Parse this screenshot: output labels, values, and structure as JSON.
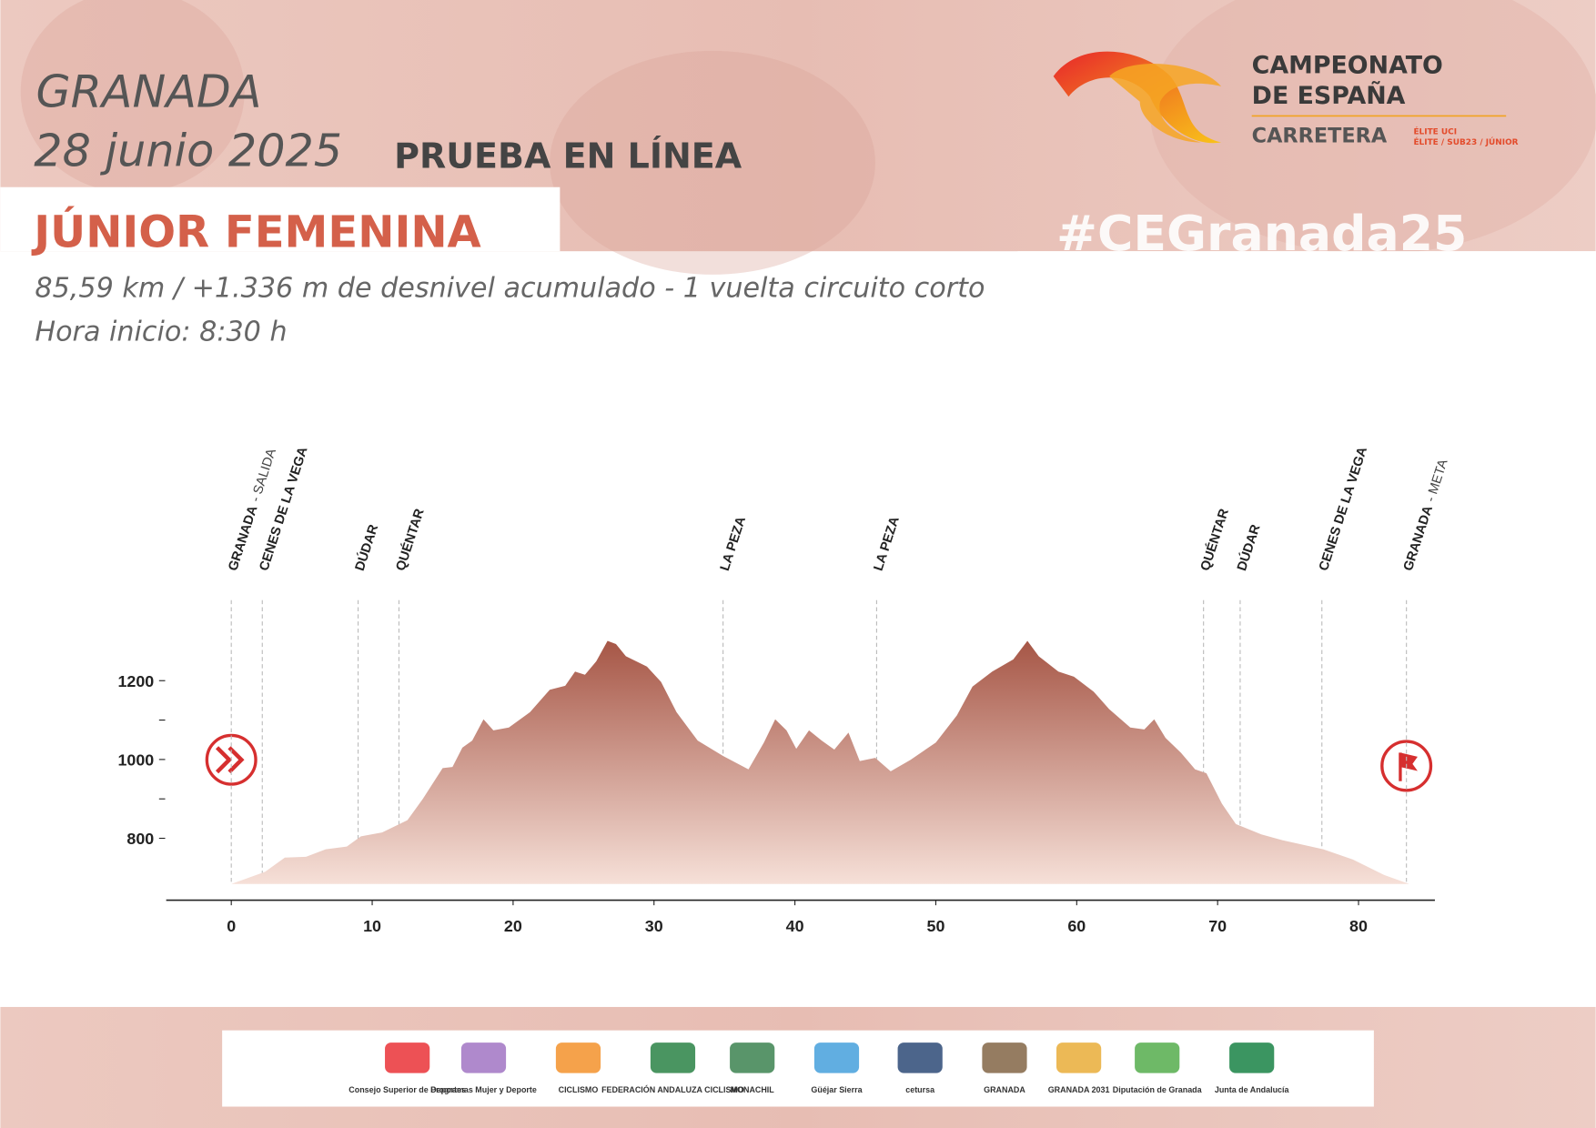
{
  "header": {
    "city": "GRANADA",
    "date": "28 junio 2025",
    "event": "PRUEBA EN LÍNEA",
    "category": "JÚNIOR FEMENINA",
    "details": "85,59 km / +1.336 m de desnivel acumulado  - 1 vuelta circuito corto",
    "start_time": "Hora inicio: 8:30 h",
    "hashtag": "#CEGranada25"
  },
  "logo": {
    "line1": "CAMPEONATO",
    "line2": "DE ESPAÑA",
    "line3": "CARRETERA",
    "tag1": "ÉLITE UCI",
    "tag2": "ÉLITE / SUB23 / JÚNIOR"
  },
  "sponsors": [
    "Consejo Superior de Deportes",
    "Programas Mujer y Deporte",
    "CICLISMO",
    "FEDERACIÓN ANDALUZA CICLISMO",
    "MONACHIL",
    "Güéjar Sierra",
    "cetursa",
    "GRANADA",
    "GRANADA 2031",
    "Diputación de Granada",
    "Junta de Andalucía"
  ],
  "chart_data": {
    "type": "area",
    "color_top": "#a65646",
    "color_bottom": "#f6e0d8",
    "x": [
      0,
      2.4,
      3.8,
      5.3,
      6.7,
      8.2,
      9.2,
      10.7,
      12.5,
      13.6,
      15.0,
      15.7,
      16.4,
      17.1,
      17.9,
      18.6,
      19.7,
      21.2,
      22.6,
      23.7,
      24.4,
      25.1,
      25.9,
      26.7,
      27.3,
      28.0,
      29.5,
      30.5,
      31.6,
      33.1,
      34.9,
      36.7,
      37.8,
      38.6,
      39.4,
      40.1,
      41.0,
      41.9,
      42.8,
      43.8,
      44.6,
      45.7,
      46.8,
      48.2,
      50.0,
      51.5,
      52.6,
      54.0,
      55.5,
      56.5,
      57.3,
      58.7,
      59.8,
      61.2,
      62.3,
      63.8,
      64.8,
      65.5,
      66.3,
      67.4,
      68.4,
      69.2,
      70.3,
      71.3,
      73.1,
      74.6,
      77.5,
      79.6,
      81.8,
      83.6
    ],
    "values": [
      684,
      715,
      751,
      753,
      772,
      779,
      805,
      815,
      846,
      900,
      978,
      981,
      1030,
      1048,
      1102,
      1074,
      1081,
      1120,
      1177,
      1187,
      1223,
      1215,
      1249,
      1301,
      1293,
      1262,
      1236,
      1197,
      1120,
      1048,
      1009,
      975,
      1043,
      1102,
      1074,
      1027,
      1074,
      1048,
      1025,
      1068,
      996,
      1004,
      970,
      999,
      1043,
      1112,
      1185,
      1223,
      1254,
      1301,
      1262,
      1223,
      1210,
      1172,
      1128,
      1081,
      1076,
      1102,
      1055,
      1017,
      975,
      965,
      888,
      836,
      810,
      795,
      772,
      746,
      707,
      684
    ],
    "xlim": [
      -4.62,
      85.42
    ],
    "xticks": [
      0,
      10,
      20,
      30,
      40,
      50,
      60,
      70,
      80
    ],
    "ylim": [
      643,
      1900
    ],
    "yticks": [
      800,
      1000,
      1200
    ],
    "yminor_ticks": [
      900,
      1100
    ],
    "markers": [
      {
        "name": "GRANADA",
        "note": "- SALIDA",
        "x": 0
      },
      {
        "name": "CENES DE LA VEGA",
        "x": 2.2
      },
      {
        "name": "DÚDAR",
        "x": 9.0
      },
      {
        "name": "QUÉNTAR",
        "x": 11.9
      },
      {
        "name": "LA PEZA",
        "x": 34.9
      },
      {
        "name": "LA PEZA",
        "x": 45.8
      },
      {
        "name": "QUÉNTAR",
        "x": 69.0
      },
      {
        "name": "DÚDAR",
        "x": 71.6
      },
      {
        "name": "CENES DE LA VEGA",
        "x": 77.4
      },
      {
        "name": "GRANADA",
        "note": "- META",
        "x": 83.4
      }
    ]
  }
}
